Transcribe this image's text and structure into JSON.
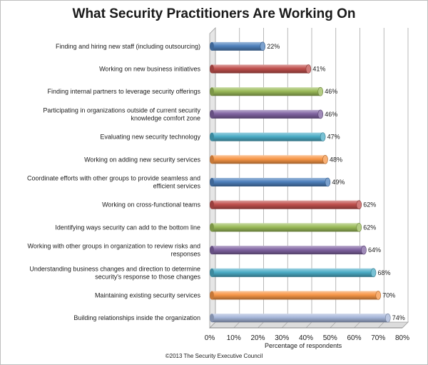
{
  "chart_data": {
    "type": "bar",
    "orientation": "horizontal",
    "title": "What Security Practitioners Are Working On",
    "xlabel": "Percentage of respondents",
    "ylabel": "",
    "xlim": [
      0,
      80
    ],
    "x_ticks": [
      "0%",
      "10%",
      "20%",
      "30%",
      "40%",
      "50%",
      "60%",
      "70%",
      "80%"
    ],
    "grid": true,
    "footer": "©2013 The Security Executive Council",
    "categories": [
      [
        "Finding and hiring new staff (including outsourcing)"
      ],
      [
        "Working on new business initiatives"
      ],
      [
        "Finding internal partners to leverage security offerings"
      ],
      [
        "Participating in organizations outside of current security",
        "knowledge comfort zone"
      ],
      [
        "Evaluating new security technology"
      ],
      [
        "Working on adding new security services"
      ],
      [
        "Coordinate efforts with other groups to provide seamless and",
        "efficient services"
      ],
      [
        "Working on cross-functional teams"
      ],
      [
        "Identifying ways security can add to the bottom line"
      ],
      [
        "Working with other groups in organization  to review risks and",
        "responses"
      ],
      [
        "Understanding business changes and direction to determine",
        "security's response to those changes"
      ],
      [
        "Maintaining existing security services"
      ],
      [
        "Building relationships inside the organization"
      ]
    ],
    "values": [
      22,
      41,
      46,
      46,
      47,
      48,
      49,
      62,
      62,
      64,
      68,
      70,
      74
    ],
    "value_labels": [
      "22%",
      "41%",
      "46%",
      "46%",
      "47%",
      "48%",
      "49%",
      "62%",
      "62%",
      "64%",
      "68%",
      "70%",
      "74%"
    ],
    "colors": [
      "#4f81bd",
      "#c0504d",
      "#9bbb59",
      "#8064a2",
      "#4bacc6",
      "#f79646",
      "#4f81bd",
      "#c0504d",
      "#9bbb59",
      "#8064a2",
      "#4bacc6",
      "#f79646",
      "#a5b5d8"
    ]
  }
}
